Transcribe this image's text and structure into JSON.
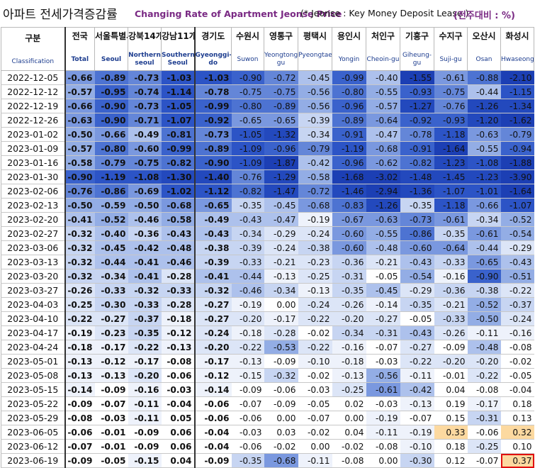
{
  "title": {
    "korean": "아파트 전세가격증감률",
    "english": "Changing Rate of Apartment Jeonse Price",
    "note": "(* Jeonse : Key Money Deposit Lease )",
    "unit": "(전주대비 : %)"
  },
  "columns": [
    {
      "id": "date",
      "kr": "구분",
      "en": "Classification"
    },
    {
      "id": "national",
      "kr": "전국",
      "en": "Total"
    },
    {
      "id": "seoul",
      "kr": "서울특별시",
      "en": "Seoul"
    },
    {
      "id": "north",
      "kr": "강북14개구",
      "en": "Northern seoul"
    },
    {
      "id": "south",
      "kr": "강남11개구",
      "en": "Southern Seoul"
    },
    {
      "id": "gyeonggi",
      "kr": "경기도",
      "en": "Gyeonggi-do"
    },
    {
      "id": "suwon",
      "kr": "수원시",
      "en": "Suwon"
    },
    {
      "id": "yeongtong",
      "kr": "영통구",
      "en": "Yeongtong-gu"
    },
    {
      "id": "pyeongtaek",
      "kr": "평택시",
      "en": "Pyeongtaek"
    },
    {
      "id": "yongin",
      "kr": "용인시",
      "en": "Yongin"
    },
    {
      "id": "cheoin",
      "kr": "처인구",
      "en": "Cheoin-gu"
    },
    {
      "id": "giheung",
      "kr": "기흥구",
      "en": "Giheung-gu"
    },
    {
      "id": "suji",
      "kr": "수지구",
      "en": "Suji-gu"
    },
    {
      "id": "osan",
      "kr": "오산시",
      "en": "Osan"
    },
    {
      "id": "hwaseong",
      "kr": "화성시",
      "en": "Hwaseong"
    }
  ],
  "rows": [
    {
      "date": "2022-12-05",
      "values": [
        -0.66,
        -0.89,
        -0.73,
        -1.03,
        -1.03,
        -0.9,
        -0.72,
        -0.45,
        -0.99,
        -0.4,
        -1.55,
        -0.61,
        -0.88,
        -2.1
      ]
    },
    {
      "date": "2022-12-12",
      "values": [
        -0.57,
        -0.95,
        -0.74,
        -1.14,
        -0.78,
        -0.75,
        -0.75,
        -0.56,
        -0.8,
        -0.55,
        -0.93,
        -0.75,
        -0.44,
        -1.15
      ]
    },
    {
      "date": "2022-12-19",
      "values": [
        -0.66,
        -0.9,
        -0.73,
        -1.05,
        -0.99,
        -0.8,
        -0.89,
        -0.56,
        -0.96,
        -0.57,
        -1.27,
        -0.76,
        -1.26,
        -1.34
      ]
    },
    {
      "date": "2022-12-26",
      "values": [
        -0.63,
        -0.9,
        -0.71,
        -1.07,
        -0.92,
        -0.65,
        -0.65,
        -0.39,
        -0.89,
        -0.64,
        -0.92,
        -0.93,
        -1.2,
        -1.62
      ]
    },
    {
      "date": "2023-01-02",
      "values": [
        -0.5,
        -0.66,
        -0.49,
        -0.81,
        -0.73,
        -1.05,
        -1.32,
        -0.34,
        -0.91,
        -0.47,
        -0.78,
        -1.18,
        -0.63,
        -0.79
      ]
    },
    {
      "date": "2023-01-09",
      "values": [
        -0.57,
        -0.8,
        -0.6,
        -0.99,
        -0.89,
        -1.09,
        -0.96,
        -0.79,
        -1.19,
        -0.68,
        -0.91,
        -1.64,
        -0.55,
        -0.94
      ]
    },
    {
      "date": "2023-01-16",
      "values": [
        -0.58,
        -0.79,
        -0.75,
        -0.82,
        -0.9,
        -1.09,
        -1.87,
        -0.42,
        -0.96,
        -0.62,
        -0.82,
        -1.23,
        -1.08,
        -1.88
      ]
    },
    {
      "date": "2023-01-30",
      "values": [
        -0.9,
        -1.19,
        -1.08,
        -1.3,
        -1.4,
        -0.76,
        -1.29,
        -0.58,
        -1.68,
        -3.02,
        -1.48,
        -1.45,
        -1.23,
        -3.9
      ]
    },
    {
      "date": "2023-02-06",
      "values": [
        -0.76,
        -0.86,
        -0.69,
        -1.02,
        -1.12,
        -0.82,
        -1.47,
        -0.72,
        -1.46,
        -2.94,
        -1.36,
        -1.07,
        -1.01,
        -1.64
      ]
    },
    {
      "date": "2023-02-13",
      "values": [
        -0.5,
        -0.59,
        -0.5,
        -0.68,
        -0.65,
        -0.35,
        -0.45,
        -0.68,
        -0.83,
        -1.26,
        -0.35,
        -1.18,
        -0.66,
        -1.07
      ]
    },
    {
      "date": "2023-02-20",
      "values": [
        -0.41,
        -0.52,
        -0.46,
        -0.58,
        -0.49,
        -0.43,
        -0.47,
        -0.19,
        -0.67,
        -0.63,
        -0.73,
        -0.61,
        -0.34,
        -0.52
      ]
    },
    {
      "date": "2023-02-27",
      "values": [
        -0.32,
        -0.4,
        -0.36,
        -0.43,
        -0.43,
        -0.34,
        -0.29,
        -0.24,
        -0.6,
        -0.55,
        -0.86,
        -0.35,
        -0.61,
        -0.54
      ]
    },
    {
      "date": "2023-03-06",
      "values": [
        -0.32,
        -0.45,
        -0.42,
        -0.48,
        -0.38,
        -0.39,
        -0.24,
        -0.38,
        -0.6,
        -0.48,
        -0.6,
        -0.64,
        -0.44,
        -0.29
      ]
    },
    {
      "date": "2023-03-13",
      "values": [
        -0.32,
        -0.44,
        -0.41,
        -0.46,
        -0.39,
        -0.33,
        -0.21,
        -0.23,
        -0.36,
        -0.21,
        -0.43,
        -0.33,
        -0.65,
        -0.43
      ]
    },
    {
      "date": "2023-03-20",
      "values": [
        -0.32,
        -0.34,
        -0.41,
        -0.28,
        -0.41,
        -0.44,
        -0.13,
        -0.25,
        -0.31,
        -0.05,
        -0.54,
        -0.16,
        -0.9,
        -0.51
      ]
    },
    {
      "date": "2023-03-27",
      "values": [
        -0.26,
        -0.33,
        -0.32,
        -0.33,
        -0.32,
        -0.46,
        -0.34,
        -0.13,
        -0.35,
        -0.45,
        -0.29,
        -0.36,
        -0.38,
        -0.22
      ]
    },
    {
      "date": "2023-04-03",
      "values": [
        -0.25,
        -0.3,
        -0.33,
        -0.28,
        -0.27,
        -0.19,
        0.0,
        -0.24,
        -0.26,
        -0.14,
        -0.35,
        -0.21,
        -0.52,
        -0.37
      ]
    },
    {
      "date": "2023-04-10",
      "values": [
        -0.22,
        -0.27,
        -0.37,
        -0.18,
        -0.27,
        -0.2,
        -0.17,
        -0.22,
        -0.2,
        -0.27,
        -0.05,
        -0.33,
        -0.5,
        -0.24
      ]
    },
    {
      "date": "2023-04-17",
      "values": [
        -0.19,
        -0.23,
        -0.35,
        -0.12,
        -0.24,
        -0.18,
        -0.28,
        -0.02,
        -0.34,
        -0.31,
        -0.43,
        -0.26,
        -0.11,
        -0.16
      ]
    },
    {
      "date": "2023-04-24",
      "values": [
        -0.18,
        -0.17,
        -0.22,
        -0.13,
        -0.2,
        -0.22,
        -0.53,
        -0.22,
        -0.16,
        -0.07,
        -0.27,
        -0.09,
        -0.48,
        -0.08
      ]
    },
    {
      "date": "2023-05-01",
      "values": [
        -0.13,
        -0.12,
        -0.17,
        -0.08,
        -0.17,
        -0.13,
        -0.09,
        -0.1,
        -0.18,
        -0.03,
        -0.22,
        -0.2,
        -0.2,
        -0.02
      ]
    },
    {
      "date": "2023-05-08",
      "values": [
        -0.13,
        -0.13,
        -0.2,
        -0.06,
        -0.12,
        -0.15,
        -0.32,
        -0.02,
        -0.13,
        -0.56,
        -0.11,
        -0.01,
        -0.22,
        -0.05
      ]
    },
    {
      "date": "2023-05-15",
      "values": [
        -0.14,
        -0.09,
        -0.16,
        -0.03,
        -0.14,
        -0.09,
        -0.06,
        -0.03,
        -0.25,
        -0.61,
        -0.42,
        0.04,
        -0.08,
        -0.04
      ]
    },
    {
      "date": "2023-05-22",
      "values": [
        -0.09,
        -0.07,
        -0.11,
        -0.04,
        -0.06,
        -0.07,
        -0.09,
        -0.05,
        0.02,
        -0.03,
        -0.13,
        0.19,
        -0.17,
        0.18
      ]
    },
    {
      "date": "2023-05-29",
      "values": [
        -0.08,
        -0.03,
        -0.11,
        0.05,
        -0.06,
        -0.06,
        0.0,
        -0.07,
        0.0,
        -0.19,
        -0.07,
        0.15,
        -0.31,
        0.13
      ]
    },
    {
      "date": "2023-06-05",
      "values": [
        -0.06,
        -0.01,
        -0.09,
        0.06,
        -0.04,
        -0.03,
        0.03,
        -0.02,
        0.04,
        -0.11,
        -0.19,
        0.33,
        -0.06,
        0.32
      ]
    },
    {
      "date": "2023-06-12",
      "values": [
        -0.07,
        -0.01,
        -0.09,
        0.06,
        -0.04,
        -0.06,
        -0.02,
        0.0,
        -0.02,
        -0.08,
        -0.1,
        0.18,
        -0.25,
        0.1
      ]
    },
    {
      "date": "2023-06-19",
      "values": [
        -0.09,
        -0.05,
        -0.15,
        0.04,
        -0.09,
        -0.35,
        -0.68,
        -0.11,
        -0.08,
        0.0,
        -0.3,
        0.12,
        -0.07,
        0.37
      ]
    }
  ],
  "highlighted_cell": {
    "date": "2023-06-19",
    "column": "hwaseong"
  }
}
